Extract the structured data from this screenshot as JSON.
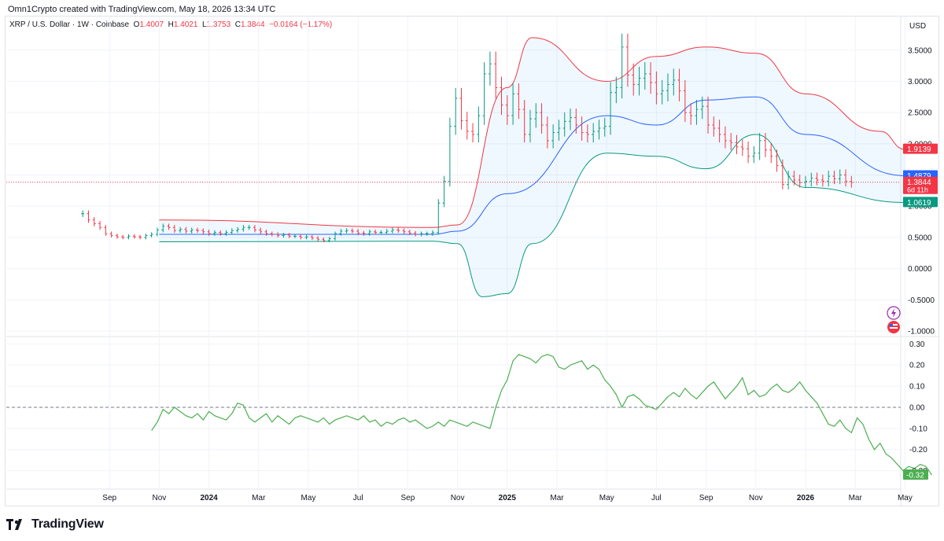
{
  "header": {
    "credit": "Omn1Crypto created with TradingView.com, May 18, 2026 13:34 UTC"
  },
  "legend": {
    "symbol": "XRP / U.S. Dollar · 1W · Coinbase",
    "open_label": "O",
    "open": "1.4007",
    "high_label": "H",
    "high": "1.4021",
    "low_label": "L",
    "low": "1.3753",
    "close_label": "C",
    "close": "1.3844",
    "change": "−0.0164 (−1.17%)"
  },
  "currency_label": "USD",
  "footer": {
    "brand": "TradingView"
  },
  "colors": {
    "up": "#089981",
    "down": "#f23645",
    "upper_band": "#f23645",
    "middle_band": "#2962ff",
    "lower_band": "#089981",
    "band_fill": "#2196f3",
    "indicator": "#4caf50",
    "grid": "#f0f3fa",
    "axis_text": "#131722"
  },
  "icons": [
    "lightning-icon",
    "flag-icon",
    "tradingview-logo-icon"
  ],
  "chart_data": [
    {
      "type": "candlestick",
      "title": "",
      "timeframe": "1W",
      "xlabel": "",
      "ylabel": "",
      "ylim": [
        -1.05,
        3.9
      ],
      "y_ticks": [
        "3.5000",
        "3.0000",
        "2.5000",
        "2.0000",
        "1.5000",
        "1.0000",
        "0.5000",
        "0.0000",
        "-0.5000",
        "-1.0000"
      ],
      "x_ticks": [
        "Sep",
        "Nov",
        "2024",
        "Mar",
        "May",
        "Jul",
        "Sep",
        "Nov",
        "2025",
        "Mar",
        "May",
        "Jul",
        "Sep",
        "Nov",
        "2026",
        "Mar",
        "May"
      ],
      "grid": true,
      "series_close": [
        0.88,
        0.78,
        0.72,
        0.66,
        0.56,
        0.53,
        0.51,
        0.5,
        0.52,
        0.51,
        0.5,
        0.53,
        0.55,
        0.62,
        0.68,
        0.66,
        0.61,
        0.63,
        0.6,
        0.62,
        0.61,
        0.59,
        0.56,
        0.58,
        0.56,
        0.58,
        0.61,
        0.63,
        0.66,
        0.66,
        0.62,
        0.59,
        0.56,
        0.55,
        0.53,
        0.54,
        0.52,
        0.52,
        0.5,
        0.51,
        0.49,
        0.47,
        0.45,
        0.48,
        0.56,
        0.6,
        0.61,
        0.6,
        0.57,
        0.56,
        0.59,
        0.58,
        0.58,
        0.6,
        0.62,
        0.61,
        0.59,
        0.57,
        0.55,
        0.56,
        0.56,
        0.58,
        1.05,
        1.4,
        2.28,
        2.73,
        2.37,
        2.2,
        2.15,
        2.45,
        3.12,
        3.28,
        2.9,
        2.62,
        2.45,
        2.8,
        2.55,
        2.15,
        2.4,
        2.5,
        2.3,
        2.05,
        2.18,
        2.25,
        2.36,
        2.42,
        2.3,
        2.18,
        2.15,
        2.2,
        2.25,
        2.28,
        2.82,
        2.9,
        3.55,
        3.1,
        2.95,
        3.05,
        3.12,
        2.98,
        2.8,
        2.85,
        2.95,
        3.02,
        2.85,
        2.5,
        2.45,
        2.55,
        2.6,
        2.3,
        2.25,
        2.15,
        2.05,
        2.02,
        1.95,
        1.92,
        1.8,
        1.85,
        2.05,
        1.9,
        1.8,
        1.65,
        1.35,
        1.48,
        1.42,
        1.38,
        1.4,
        1.45,
        1.42,
        1.4,
        1.48,
        1.44,
        1.5,
        1.4,
        1.38
      ],
      "bollinger": {
        "upper_anchor_x": [
          "2023-11",
          "2024-10",
          "2024-11",
          "2025-01",
          "2025-02",
          "2025-05",
          "2025-07",
          "2025-09",
          "2025-11",
          "2026-01",
          "2026-04",
          "2026-05"
        ],
        "upper": [
          0.78,
          0.66,
          0.7,
          2.9,
          3.7,
          3.0,
          3.4,
          3.55,
          3.45,
          2.8,
          2.2,
          1.91
        ],
        "middle_anchor_x": [
          "2023-11",
          "2024-10",
          "2024-11",
          "2025-01",
          "2025-05",
          "2025-07",
          "2025-09",
          "2025-11",
          "2026-01",
          "2026-05"
        ],
        "middle": [
          0.55,
          0.55,
          0.6,
          1.2,
          2.45,
          2.3,
          2.7,
          2.75,
          2.15,
          1.49
        ],
        "lower_anchor_x": [
          "2023-11",
          "2024-10",
          "2024-11",
          "2024-12",
          "2025-01",
          "2025-02",
          "2025-05",
          "2025-07",
          "2025-09",
          "2025-11",
          "2026-01",
          "2026-05"
        ],
        "lower": [
          0.43,
          0.44,
          0.4,
          -0.45,
          -0.4,
          0.4,
          1.85,
          1.8,
          1.6,
          2.15,
          1.3,
          1.06
        ]
      },
      "price_labels": [
        {
          "value": "1.9139",
          "color": "#f23645"
        },
        {
          "value": "1.4879",
          "color": "#2962ff"
        },
        {
          "value": "1.3844",
          "sub": "6d 11h",
          "color": "#f23645"
        },
        {
          "value": "1.0619",
          "color": "#089981"
        }
      ],
      "current_price_line": 1.3844
    },
    {
      "type": "line",
      "title": "",
      "xlabel": "",
      "ylabel": "",
      "ylim": [
        -0.35,
        0.32
      ],
      "y_ticks": [
        "0.30",
        "0.20",
        "0.10",
        "0.00",
        "-0.10",
        "-0.20",
        "-0.30"
      ],
      "zero_line": true,
      "last_value_label": "-0.32",
      "series": [
        {
          "values": [
            -0.11,
            -0.07,
            -0.01,
            -0.03,
            0.0,
            -0.02,
            -0.04,
            -0.05,
            -0.03,
            -0.06,
            -0.02,
            -0.04,
            -0.05,
            -0.06,
            -0.03,
            0.02,
            0.01,
            -0.05,
            -0.07,
            -0.05,
            -0.03,
            -0.07,
            -0.04,
            -0.06,
            -0.08,
            -0.05,
            -0.04,
            -0.05,
            -0.06,
            -0.07,
            -0.05,
            -0.08,
            -0.06,
            -0.05,
            -0.04,
            -0.05,
            -0.06,
            -0.04,
            -0.07,
            -0.06,
            -0.09,
            -0.07,
            -0.08,
            -0.06,
            -0.05,
            -0.07,
            -0.06,
            -0.08,
            -0.1,
            -0.09,
            -0.07,
            -0.09,
            -0.06,
            -0.07,
            -0.08,
            -0.09,
            -0.07,
            -0.08,
            -0.09,
            -0.1,
            0.0,
            0.08,
            0.13,
            0.22,
            0.25,
            0.24,
            0.23,
            0.21,
            0.24,
            0.25,
            0.24,
            0.19,
            0.18,
            0.2,
            0.21,
            0.22,
            0.18,
            0.2,
            0.18,
            0.13,
            0.1,
            0.06,
            0.0,
            0.05,
            0.06,
            0.04,
            0.01,
            0.0,
            -0.01,
            0.02,
            0.05,
            0.07,
            0.05,
            0.09,
            0.06,
            0.04,
            0.07,
            0.1,
            0.12,
            0.08,
            0.04,
            0.07,
            0.1,
            0.14,
            0.06,
            0.08,
            0.05,
            0.06,
            0.09,
            0.11,
            0.08,
            0.07,
            0.09,
            0.12,
            0.08,
            0.05,
            0.02,
            -0.03,
            -0.08,
            -0.09,
            -0.06,
            -0.1,
            -0.12,
            -0.05,
            -0.08,
            -0.15,
            -0.2,
            -0.17,
            -0.22,
            -0.24,
            -0.27,
            -0.3,
            -0.28,
            -0.29,
            -0.27,
            -0.28,
            -0.32
          ]
        }
      ]
    }
  ]
}
